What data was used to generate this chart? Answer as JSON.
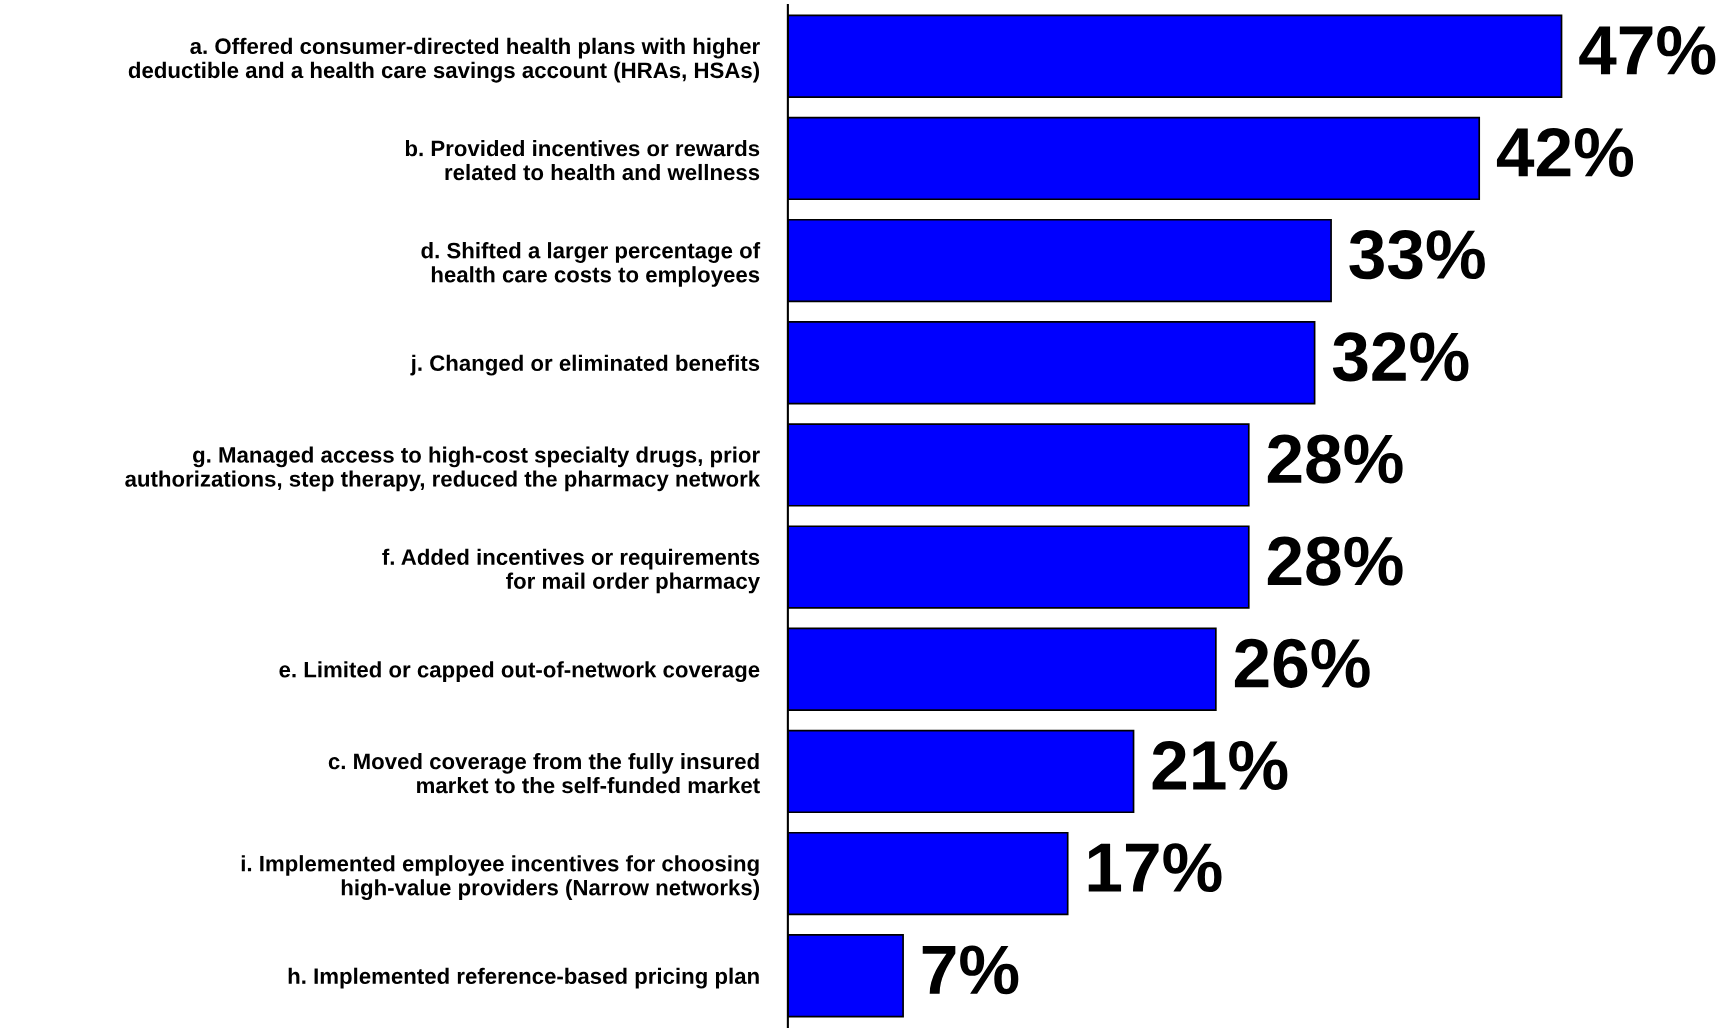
{
  "chart_data": {
    "type": "bar",
    "orientation": "horizontal",
    "categories": [
      "a. Offered consumer-directed health plans with higher\ndeductible and a health care savings account (HRAs, HSAs)",
      "b. Provided incentives or rewards\nrelated to health and wellness",
      "d. Shifted a larger percentage of\nhealth care costs to employees",
      "j. Changed or eliminated benefits",
      "g. Managed access to high-cost specialty drugs, prior\nauthorizations, step therapy, reduced the pharmacy network",
      "f. Added incentives or requirements\nfor mail order pharmacy",
      "e. Limited or capped out-of-network coverage",
      "c. Moved coverage from the fully insured\nmarket to the self-funded market",
      "i. Implemented employee incentives for choosing\nhigh-value providers (Narrow networks)",
      "h. Implemented reference-based pricing plan"
    ],
    "values": [
      47,
      42,
      33,
      32,
      28,
      28,
      26,
      21,
      17,
      7
    ],
    "value_labels": [
      "47%",
      "42%",
      "33%",
      "32%",
      "28%",
      "28%",
      "26%",
      "21%",
      "17%",
      "7%"
    ],
    "color": "#0000ff",
    "grid": false,
    "legend": false
  }
}
